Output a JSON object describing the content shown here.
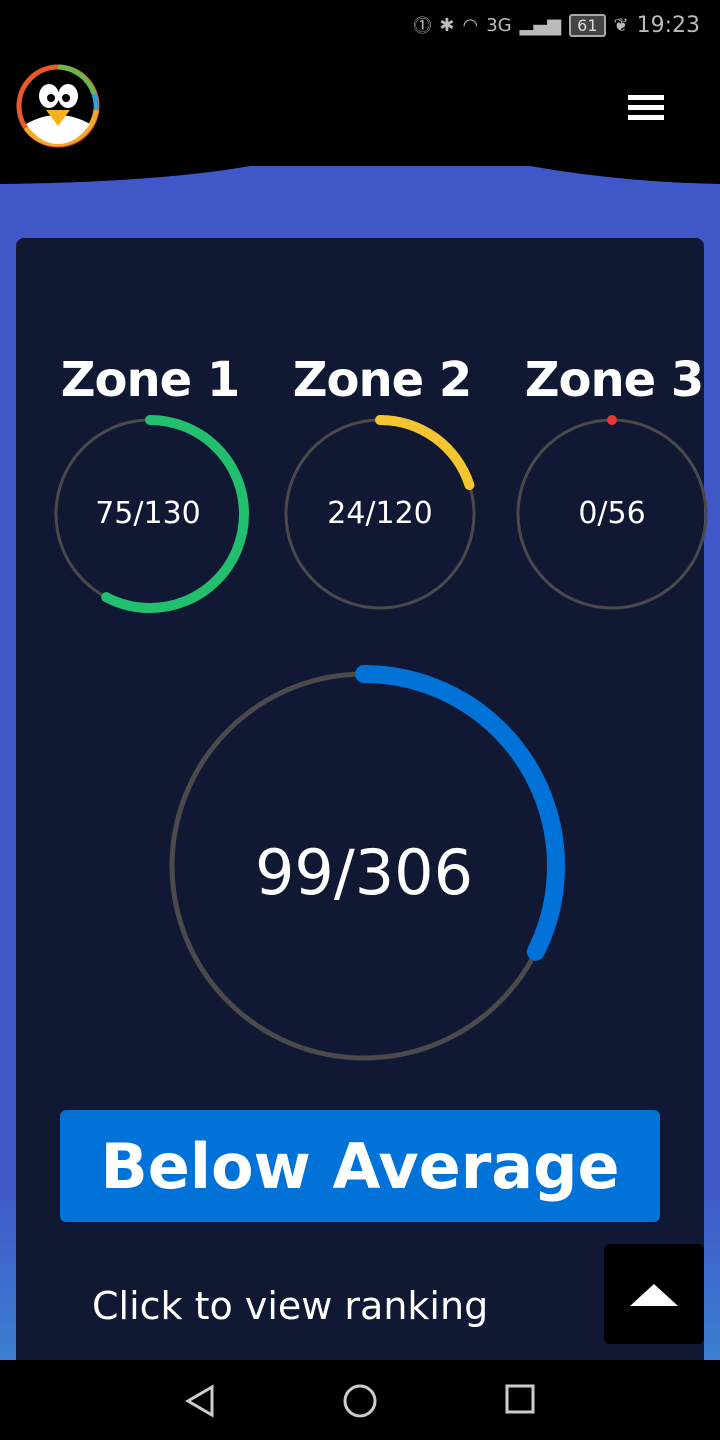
{
  "status_bar": {
    "time": "19:23",
    "battery": "61",
    "network": "3G"
  },
  "header": {
    "logo": "penguin-logo",
    "menu_icon": "hamburger-icon"
  },
  "zones": [
    {
      "label": "Zone 1",
      "value": 75,
      "total": 130,
      "text": "75/130",
      "color": "#22c06e"
    },
    {
      "label": "Zone 2",
      "value": 24,
      "total": 120,
      "text": "24/120",
      "color": "#f5c431"
    },
    {
      "label": "Zone 3",
      "value": 0,
      "total": 56,
      "text": "0/56",
      "color": "#e53935"
    }
  ],
  "overall": {
    "value": 99,
    "total": 306,
    "text": "99/306",
    "color": "#0072d8"
  },
  "rating_button": "Below Average",
  "ranking_link": "Click to view ranking",
  "colors": {
    "track": "#4a4a4a",
    "card": "#111833",
    "accent": "#4057c8"
  }
}
